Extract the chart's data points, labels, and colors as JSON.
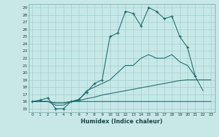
{
  "xlabel": "Humidex (Indice chaleur)",
  "bg_color": "#c8e8e8",
  "grid_color": "#9ecece",
  "line_color": "#1a6b6b",
  "xlim": [
    -0.5,
    23.5
  ],
  "ylim": [
    14.5,
    29.5
  ],
  "xticks": [
    0,
    1,
    2,
    3,
    4,
    5,
    6,
    7,
    8,
    9,
    10,
    11,
    12,
    13,
    14,
    15,
    16,
    17,
    18,
    19,
    20,
    21,
    22,
    23
  ],
  "yticks": [
    15,
    16,
    17,
    18,
    19,
    20,
    21,
    22,
    23,
    24,
    25,
    26,
    27,
    28,
    29
  ],
  "series": [
    {
      "x": [
        0,
        1,
        2,
        3,
        4,
        5,
        6,
        7,
        8,
        9,
        10,
        11,
        12,
        13,
        14,
        15,
        16,
        17,
        18,
        19,
        20,
        21
      ],
      "y": [
        16,
        16.2,
        16.5,
        15,
        15,
        16,
        16.3,
        17.3,
        18.5,
        19,
        25,
        25.5,
        28.5,
        28.2,
        26.5,
        29,
        28.5,
        27.5,
        27.8,
        25,
        23.5,
        19.5
      ],
      "marker": true
    },
    {
      "x": [
        0,
        1,
        2,
        3,
        4,
        5,
        6,
        7,
        8,
        9,
        10,
        11,
        12,
        13,
        14,
        15,
        16,
        17,
        18,
        19,
        20,
        21,
        22
      ],
      "y": [
        16,
        16,
        16,
        15.5,
        15.5,
        16,
        16.2,
        17.5,
        18,
        18.5,
        19,
        20,
        21,
        21,
        22,
        22.5,
        22,
        22,
        22.5,
        21.5,
        21,
        19.5,
        17.5
      ],
      "marker": false
    },
    {
      "x": [
        0,
        1,
        2,
        3,
        4,
        5,
        6,
        7,
        8,
        9,
        10,
        11,
        12,
        13,
        14,
        15,
        16,
        17,
        18,
        19,
        20,
        21,
        22,
        23
      ],
      "y": [
        16,
        16,
        16,
        15.8,
        15.8,
        16,
        16.1,
        16.4,
        16.6,
        16.9,
        17.1,
        17.3,
        17.5,
        17.7,
        17.9,
        18.1,
        18.3,
        18.5,
        18.7,
        18.9,
        19.0,
        19.0,
        19.0,
        19.0
      ],
      "marker": false
    },
    {
      "x": [
        0,
        1,
        2,
        3,
        4,
        5,
        6,
        7,
        8,
        9,
        10,
        11,
        12,
        13,
        14,
        15,
        16,
        17,
        18,
        19,
        20,
        21,
        22,
        23
      ],
      "y": [
        16,
        16,
        16,
        15.8,
        15.8,
        16,
        16,
        16,
        16,
        16,
        16,
        16,
        16,
        16,
        16,
        16,
        16,
        16,
        16,
        16,
        16,
        16,
        16,
        16
      ],
      "marker": false
    }
  ]
}
